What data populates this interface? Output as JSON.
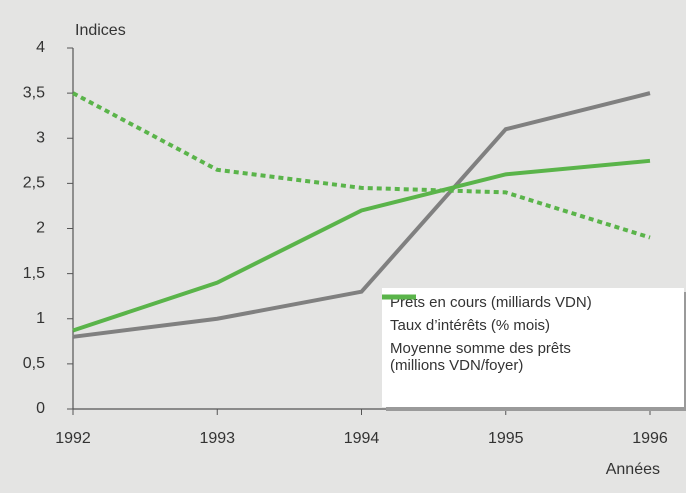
{
  "chart_data": {
    "type": "line",
    "y_label": "Indices",
    "x_label": "Années",
    "xlim": [
      1992,
      1996
    ],
    "xticks": [
      1992,
      1993,
      1994,
      1995,
      1996
    ],
    "ylim": [
      0,
      4
    ],
    "yticks": [
      0,
      {
        "value": 0.5,
        "label": "0,5"
      },
      1,
      {
        "value": 1.5,
        "label": "1,5"
      },
      2,
      {
        "value": 2.5,
        "label": "2,5"
      },
      3,
      {
        "value": 3.5,
        "label": "3,5"
      },
      4
    ],
    "series": [
      {
        "name": "Prêts en cours (milliards VDN)",
        "color": "#808080",
        "style": "solid",
        "x": [
          1992,
          1993,
          1994,
          1995,
          1996
        ],
        "values": [
          0.8,
          1.0,
          1.3,
          3.1,
          3.5
        ]
      },
      {
        "name": "Taux d’intérêts (% mois)",
        "color": "#5ab44a",
        "style": "dotted",
        "x": [
          1992,
          1993,
          1994,
          1995,
          1996
        ],
        "values": [
          3.5,
          2.65,
          2.45,
          2.4,
          1.9
        ]
      },
      {
        "name": "Moyenne somme des prêts (millions VDN/foyer)",
        "color": "#5ab44a",
        "style": "solid",
        "x": [
          1992,
          1993,
          1993.5,
          1994,
          1995,
          1996
        ],
        "values": [
          0.87,
          1.4,
          1.8,
          2.2,
          2.6,
          2.75
        ]
      }
    ]
  }
}
